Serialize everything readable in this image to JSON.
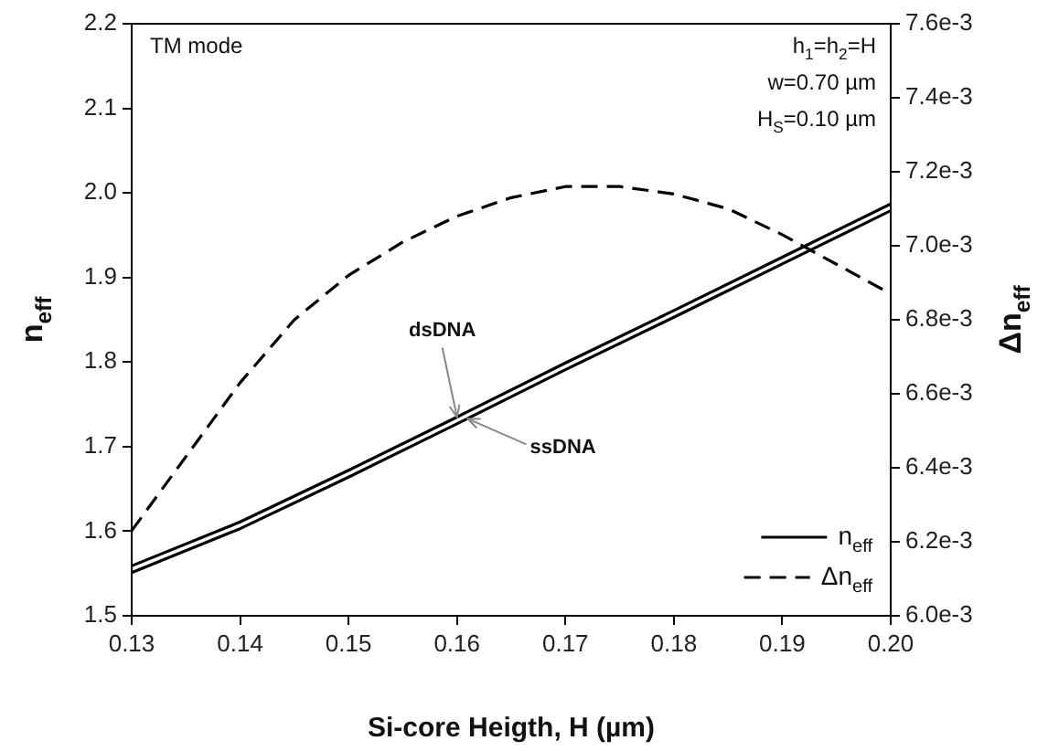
{
  "chart_data": {
    "type": "line",
    "xlabel": "Si-core Heigth, H (µm)",
    "ylabel": "n$_{eff}$",
    "y2label": "Δn$_{eff}$",
    "x": [
      0.13,
      0.14,
      0.15,
      0.16,
      0.17,
      0.18,
      0.19,
      0.2
    ],
    "xlim": [
      0.13,
      0.2
    ],
    "xticks": [
      0.13,
      0.14,
      0.15,
      0.16,
      0.17,
      0.18,
      0.19,
      {
        "value": 0.2,
        "label": "0.20"
      }
    ],
    "ylim": [
      1.5,
      2.2
    ],
    "yticks": [
      1.5,
      1.6,
      1.7,
      1.8,
      1.9,
      {
        "value": 2,
        "label": "2.0"
      },
      2.1,
      2.2
    ],
    "y2lim": [
      0.006,
      0.0076
    ],
    "y2ticks": [
      {
        "value": 0.006,
        "label": "6.0e-3"
      },
      {
        "value": 0.0062,
        "label": "6.2e-3"
      },
      {
        "value": 0.0064,
        "label": "6.4e-3"
      },
      {
        "value": 0.0066,
        "label": "6.6e-3"
      },
      {
        "value": 0.0068,
        "label": "6.8e-3"
      },
      {
        "value": 0.007,
        "label": "7.0e-3"
      },
      {
        "value": 0.0072,
        "label": "7.2e-3"
      },
      {
        "value": 0.0074,
        "label": "7.4e-3"
      },
      {
        "value": 0.0076,
        "label": "7.6e-3"
      }
    ],
    "series": [
      {
        "name": "n$_{eff}$",
        "color": "#000000",
        "line_style": "solid",
        "values": [
          1.559,
          1.611,
          1.672,
          1.735,
          1.799,
          1.861,
          1.924,
          1.987
        ]
      },
      {
        "color": "#000000",
        "line_style": "solid",
        "values": [
          1.551,
          1.603,
          1.664,
          1.727,
          1.791,
          1.853,
          1.916,
          1.979
        ]
      },
      {
        "name": "Δn$_{eff}$",
        "color": "#000000",
        "line_style": "dashed",
        "axis": "y2",
        "x": [
          0.13,
          0.135,
          0.14,
          0.145,
          0.15,
          0.155,
          0.16,
          0.165,
          0.17,
          0.175,
          0.18,
          0.185,
          0.19,
          0.195,
          0.2
        ],
        "values": [
          0.00623,
          0.00643,
          0.00663,
          0.0068,
          0.00692,
          0.00701,
          0.00708,
          0.00713,
          0.00716,
          0.00716,
          0.00714,
          0.0071,
          0.00703,
          0.00695,
          0.00687
        ]
      }
    ],
    "annotations": [
      "TM mode",
      "h$_{1}$=h$_{2}$=H",
      "w=0.70 µm",
      "H$_{S}$=0.10 µm",
      {
        "text": "dsDNA",
        "x": 0.16,
        "y": 1.735
      },
      {
        "text": "ssDNA",
        "x": 0.161,
        "y": 1.733
      }
    ],
    "grid": false,
    "legend": "bottom right",
    "marker": "none"
  }
}
